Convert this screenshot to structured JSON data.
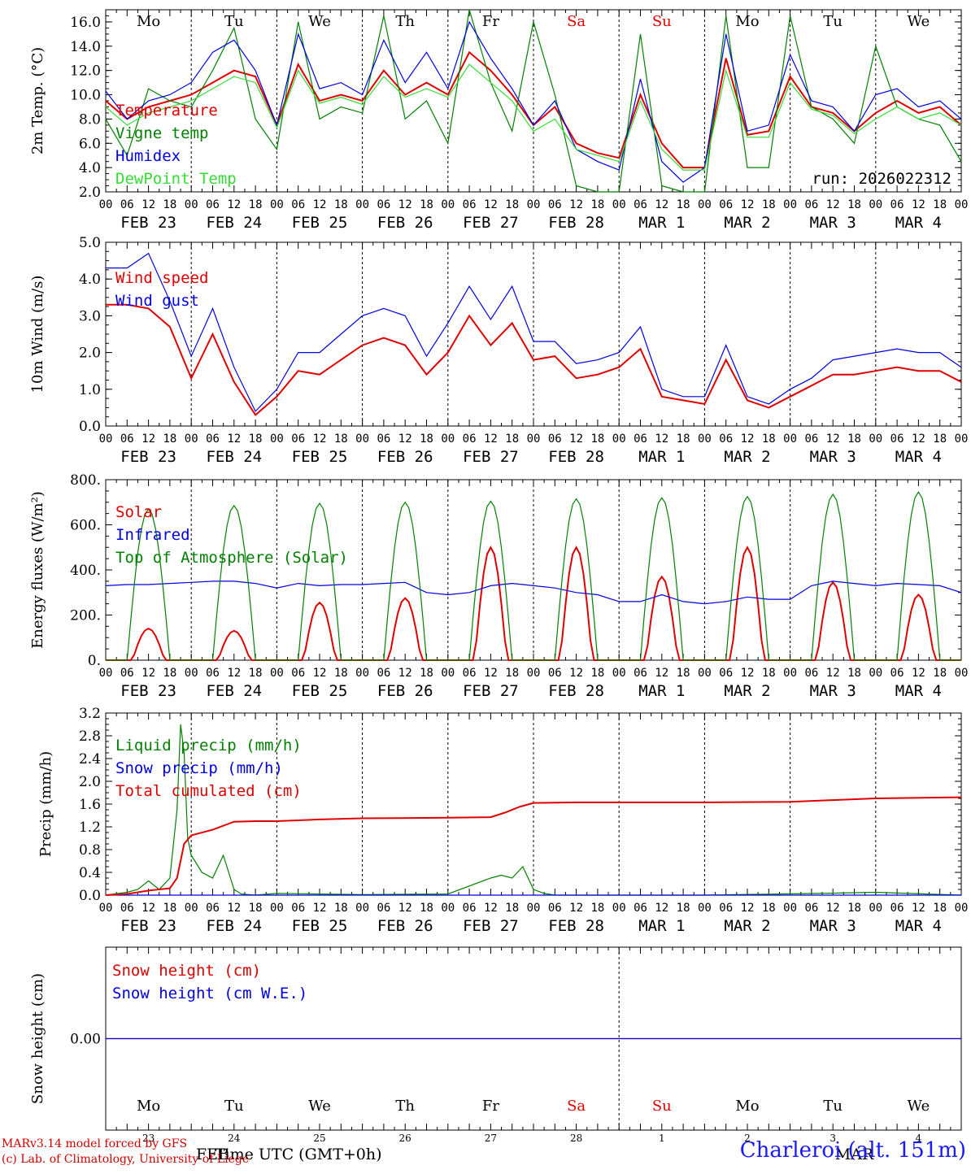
{
  "footer": {
    "credit_line1": "MARv3.14 model forced by GFS",
    "credit_line2": "(c) Lab. of Climatology, University of Liege",
    "axis_title": "Time UTC (GMT+0h)",
    "axis_month_left": "FEB",
    "axis_month_right": "MAR",
    "station": "Charleroi (alt. 151m)"
  },
  "run_label": "run: 2026022312",
  "weekdays": [
    "Mo",
    "Tu",
    "We",
    "Th",
    "Fr",
    "Sa",
    "Su",
    "Mo",
    "Tu",
    "We"
  ],
  "weekday_colors": [
    "#000000",
    "#000000",
    "#000000",
    "#000000",
    "#000000",
    "#e00000",
    "#e00000",
    "#000000",
    "#000000",
    "#000000"
  ],
  "date_labels": [
    "FEB 23",
    "FEB 24",
    "FEB 25",
    "FEB 26",
    "FEB 27",
    "FEB 28",
    "MAR  1",
    "MAR  2",
    "MAR  3",
    "MAR  4"
  ],
  "hour_labels": [
    "00",
    "06",
    "12",
    "18"
  ],
  "day_numbers": [
    "23",
    "24",
    "25",
    "26",
    "27",
    "28",
    "1",
    "2",
    "3",
    "4"
  ],
  "chart_data": [
    {
      "type": "line",
      "ylabel": "2m Temp. (°C)",
      "ylim": [
        2,
        17
      ],
      "yticks": [
        "2.0",
        "4.0",
        "6.0",
        "8.0",
        "10.0",
        "12.0",
        "14.0",
        "16.0"
      ],
      "x_unit": "hours since FEB 23 00 UTC",
      "legend": [
        "Temperature",
        "Vigne temp",
        "Humidex",
        "DewPoint Temp"
      ],
      "series": [
        {
          "name": "Temperature",
          "color": "#e00000",
          "x": [
            0,
            6,
            12,
            18,
            24,
            30,
            36,
            42,
            48,
            54,
            60,
            66,
            72,
            78,
            84,
            90,
            96,
            102,
            108,
            114,
            120,
            126,
            132,
            138,
            144,
            150,
            156,
            162,
            168,
            174,
            180,
            186,
            192,
            198,
            204,
            210,
            216,
            222,
            228,
            234,
            240
          ],
          "values": [
            9.5,
            8.0,
            9.0,
            9.5,
            10.0,
            11.0,
            12.0,
            11.5,
            7.5,
            12.5,
            9.5,
            10.0,
            9.5,
            12.0,
            10.0,
            11.0,
            10.0,
            13.5,
            12.0,
            10.0,
            7.5,
            9.0,
            6.0,
            5.2,
            4.8,
            10.0,
            6.0,
            4.0,
            4.0,
            13.0,
            6.7,
            7.0,
            11.5,
            9.0,
            8.5,
            7.0,
            8.5,
            9.5,
            8.5,
            9.0,
            7.5
          ]
        },
        {
          "name": "Vigne temp",
          "color": "#008000",
          "x": [
            0,
            6,
            12,
            18,
            24,
            30,
            36,
            42,
            48,
            54,
            60,
            66,
            72,
            78,
            84,
            90,
            96,
            102,
            108,
            114,
            120,
            126,
            132,
            138,
            144,
            150,
            156,
            162,
            168,
            174,
            180,
            186,
            192,
            198,
            204,
            210,
            216,
            222,
            228,
            234,
            240
          ],
          "values": [
            8.0,
            5.0,
            10.5,
            9.5,
            9.0,
            12.0,
            15.5,
            8.0,
            5.5,
            16.0,
            8.0,
            9.0,
            8.5,
            16.5,
            8.0,
            9.5,
            6.0,
            17.0,
            11.0,
            7.0,
            16.0,
            10.0,
            2.5,
            2.0,
            1.5,
            15.0,
            2.5,
            1.0,
            2.0,
            16.5,
            4.0,
            4.0,
            16.5,
            9.0,
            8.0,
            6.0,
            14.0,
            9.0,
            8.0,
            7.5,
            4.5
          ]
        },
        {
          "name": "Humidex",
          "color": "#0000e0",
          "x": [
            0,
            6,
            12,
            18,
            24,
            30,
            36,
            42,
            48,
            54,
            60,
            66,
            72,
            78,
            84,
            90,
            96,
            102,
            108,
            114,
            120,
            126,
            132,
            138,
            144,
            150,
            156,
            162,
            168,
            174,
            180,
            186,
            192,
            198,
            204,
            210,
            216,
            222,
            228,
            234,
            240
          ],
          "values": [
            10.3,
            8.0,
            9.5,
            10.0,
            11.0,
            13.5,
            14.5,
            12.0,
            7.5,
            15.0,
            10.5,
            11.0,
            10.0,
            14.5,
            11.0,
            13.5,
            10.5,
            16.0,
            13.0,
            10.5,
            7.5,
            9.5,
            5.5,
            4.5,
            3.8,
            11.3,
            4.5,
            2.8,
            4.0,
            15.0,
            7.0,
            7.5,
            13.3,
            9.5,
            9.0,
            7.0,
            10.0,
            10.5,
            9.0,
            9.5,
            8.0
          ]
        },
        {
          "name": "DewPoint Temp",
          "color": "#33dd33",
          "x": [
            0,
            6,
            12,
            18,
            24,
            30,
            36,
            42,
            48,
            54,
            60,
            66,
            72,
            78,
            84,
            90,
            96,
            102,
            108,
            114,
            120,
            126,
            132,
            138,
            144,
            150,
            156,
            162,
            168,
            174,
            180,
            186,
            192,
            198,
            204,
            210,
            216,
            222,
            228,
            234,
            240
          ],
          "values": [
            9.0,
            7.5,
            8.5,
            9.0,
            9.5,
            10.5,
            11.5,
            11.0,
            7.3,
            12.0,
            9.3,
            9.8,
            9.2,
            11.5,
            9.8,
            10.5,
            9.8,
            12.5,
            11.0,
            9.5,
            7.0,
            8.0,
            5.5,
            5.0,
            4.5,
            9.5,
            5.5,
            3.8,
            3.8,
            12.0,
            6.5,
            6.5,
            11.0,
            8.8,
            8.3,
            6.8,
            8.0,
            9.0,
            8.0,
            8.5,
            7.5
          ]
        }
      ]
    },
    {
      "type": "line",
      "ylabel": "10m Wind (m/s)",
      "ylim": [
        0,
        5
      ],
      "yticks": [
        "0.0",
        "1.0",
        "2.0",
        "3.0",
        "4.0",
        "5.0"
      ],
      "legend": [
        "Wind speed",
        "Wind gust"
      ],
      "series": [
        {
          "name": "Wind speed",
          "color": "#e00000",
          "x": [
            0,
            6,
            12,
            18,
            24,
            30,
            36,
            42,
            48,
            54,
            60,
            66,
            72,
            78,
            84,
            90,
            96,
            102,
            108,
            114,
            120,
            126,
            132,
            138,
            144,
            150,
            156,
            162,
            168,
            174,
            180,
            186,
            192,
            198,
            204,
            210,
            216,
            222,
            228,
            234,
            240
          ],
          "values": [
            3.3,
            3.3,
            3.2,
            2.7,
            1.3,
            2.5,
            1.2,
            0.3,
            0.8,
            1.5,
            1.4,
            1.8,
            2.2,
            2.4,
            2.2,
            1.4,
            2.0,
            3.0,
            2.2,
            2.8,
            1.8,
            1.9,
            1.3,
            1.4,
            1.6,
            2.1,
            0.8,
            0.7,
            0.6,
            1.8,
            0.7,
            0.5,
            0.8,
            1.1,
            1.4,
            1.4,
            1.5,
            1.6,
            1.5,
            1.5,
            1.2
          ]
        },
        {
          "name": "Wind gust",
          "color": "#0000e0",
          "x": [
            0,
            6,
            12,
            18,
            24,
            30,
            36,
            42,
            48,
            54,
            60,
            66,
            72,
            78,
            84,
            90,
            96,
            102,
            108,
            114,
            120,
            126,
            132,
            138,
            144,
            150,
            156,
            162,
            168,
            174,
            180,
            186,
            192,
            198,
            204,
            210,
            216,
            222,
            228,
            234,
            240
          ],
          "values": [
            4.3,
            4.3,
            4.7,
            3.4,
            1.9,
            3.2,
            1.6,
            0.4,
            1.0,
            2.0,
            2.0,
            2.5,
            3.0,
            3.2,
            3.0,
            1.9,
            2.8,
            3.8,
            2.9,
            3.8,
            2.3,
            2.3,
            1.7,
            1.8,
            2.0,
            2.7,
            1.0,
            0.8,
            0.8,
            2.2,
            0.8,
            0.6,
            1.0,
            1.3,
            1.8,
            1.9,
            2.0,
            2.1,
            2.0,
            2.0,
            1.6
          ]
        }
      ]
    },
    {
      "type": "line",
      "ylabel": "Energy fluxes (W/m²)",
      "ylim": [
        0,
        800
      ],
      "yticks": [
        "0.",
        "200.",
        "400.",
        "600.",
        "800."
      ],
      "legend": [
        "Solar",
        "Infrared",
        "Top of Atmosphere (Solar)"
      ],
      "series": [
        {
          "name": "Solar",
          "color": "#e00000",
          "peaks": [
            140,
            130,
            255,
            275,
            500,
            500,
            370,
            500,
            345,
            290
          ]
        },
        {
          "name": "Infrared",
          "color": "#0000e0",
          "x": [
            0,
            6,
            12,
            18,
            24,
            30,
            36,
            42,
            48,
            54,
            60,
            66,
            72,
            78,
            84,
            90,
            96,
            102,
            108,
            114,
            120,
            126,
            132,
            138,
            144,
            150,
            156,
            162,
            168,
            174,
            180,
            186,
            192,
            198,
            204,
            210,
            216,
            222,
            228,
            234,
            240
          ],
          "values": [
            330,
            335,
            335,
            340,
            345,
            350,
            350,
            340,
            320,
            340,
            330,
            335,
            335,
            340,
            345,
            300,
            290,
            300,
            330,
            340,
            330,
            320,
            300,
            290,
            260,
            260,
            290,
            260,
            250,
            260,
            280,
            270,
            270,
            330,
            350,
            340,
            330,
            340,
            335,
            330,
            300
          ]
        },
        {
          "name": "Top of Atmosphere (Solar)",
          "color": "#008000",
          "peaks": [
            670,
            685,
            695,
            700,
            705,
            715,
            720,
            725,
            735,
            745
          ]
        }
      ]
    },
    {
      "type": "line",
      "ylabel": "Precip (mm/h)",
      "ylim": [
        0,
        3.2
      ],
      "yticks": [
        "0.0",
        "0.4",
        "0.8",
        "1.2",
        "1.6",
        "2.0",
        "2.4",
        "2.8",
        "3.2"
      ],
      "legend": [
        "Liquid precip (mm/h)",
        "Snow precip (mm/h)",
        "Total cumulated (cm)"
      ],
      "series": [
        {
          "name": "Liquid precip (mm/h)",
          "color": "#008000",
          "x": [
            0,
            6,
            9,
            12,
            15,
            18,
            20,
            21,
            22,
            23,
            24,
            27,
            30,
            33,
            36,
            38,
            42,
            48,
            60,
            72,
            96,
            108,
            111,
            114,
            117,
            120,
            123,
            126,
            132,
            144,
            168,
            200,
            216,
            240
          ],
          "values": [
            0,
            0.05,
            0.1,
            0.25,
            0.1,
            0.3,
            1.5,
            3.0,
            2.5,
            1.0,
            0.7,
            0.4,
            0.3,
            0.7,
            0.1,
            0.02,
            0.0,
            0.03,
            0.02,
            0.01,
            0.02,
            0.3,
            0.35,
            0.3,
            0.5,
            0.1,
            0.03,
            0.0,
            0.0,
            0.0,
            0.0,
            0.03,
            0.05,
            0.0
          ]
        },
        {
          "name": "Snow precip (mm/h)",
          "color": "#0000e0",
          "x": [
            0,
            240
          ],
          "values": [
            0,
            0
          ]
        },
        {
          "name": "Total cumulated (cm)",
          "color": "#e00000",
          "x": [
            0,
            6,
            12,
            18,
            20,
            22,
            24,
            30,
            36,
            42,
            48,
            60,
            72,
            96,
            108,
            112,
            116,
            120,
            132,
            144,
            168,
            192,
            204,
            216,
            240
          ],
          "values": [
            0,
            0.02,
            0.08,
            0.12,
            0.3,
            0.9,
            1.05,
            1.15,
            1.29,
            1.3,
            1.3,
            1.33,
            1.35,
            1.36,
            1.37,
            1.45,
            1.55,
            1.62,
            1.63,
            1.63,
            1.63,
            1.64,
            1.67,
            1.7,
            1.72
          ]
        }
      ]
    },
    {
      "type": "line",
      "ylabel": "Snow height (cm)",
      "yticks": [
        "0.00"
      ],
      "legend": [
        "Snow height (cm)",
        "Snow height (cm W.E.)"
      ],
      "series": [
        {
          "name": "Snow height (cm)",
          "color": "#e00000",
          "x": [
            0,
            240
          ],
          "values": [
            0,
            0
          ]
        },
        {
          "name": "Snow height (cm W.E.)",
          "color": "#0000e0",
          "x": [
            0,
            240
          ],
          "values": [
            0,
            0
          ]
        }
      ]
    }
  ]
}
